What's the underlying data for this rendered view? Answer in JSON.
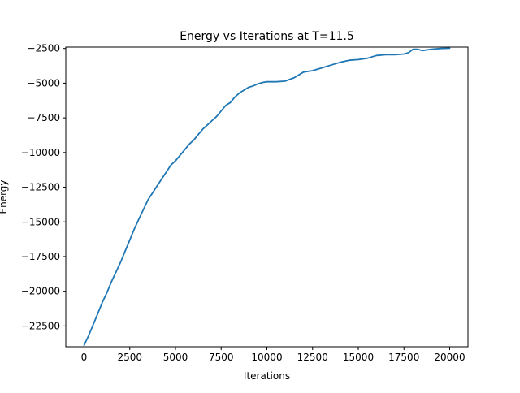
{
  "chart_data": {
    "type": "line",
    "title": "Energy vs Iterations at T=11.5",
    "xlabel": "Iterations",
    "ylabel": "Energy",
    "xlim": [
      -1000,
      21000
    ],
    "ylim": [
      -24000,
      -2400
    ],
    "xticks": [
      0,
      2500,
      5000,
      7500,
      10000,
      12500,
      15000,
      17500,
      20000
    ],
    "yticks": [
      -22500,
      -20000,
      -17500,
      -15000,
      -12500,
      -10000,
      -7500,
      -5000,
      -2500
    ],
    "grid": false,
    "legend": "none",
    "series": [
      {
        "color": "#1f77b4",
        "x": [
          0,
          250,
          500,
          750,
          1000,
          1250,
          1500,
          1750,
          2000,
          2250,
          2500,
          2750,
          3000,
          3250,
          3500,
          3750,
          4000,
          4250,
          4500,
          4750,
          5000,
          5250,
          5500,
          5750,
          6000,
          6250,
          6500,
          6750,
          7000,
          7250,
          7500,
          7750,
          8000,
          8250,
          8500,
          8750,
          9000,
          9250,
          9500,
          9750,
          10000,
          10500,
          11000,
          11500,
          12000,
          12250,
          12500,
          13000,
          13500,
          14000,
          14500,
          15000,
          15500,
          16000,
          16500,
          17000,
          17500,
          17750,
          18000,
          18250,
          18500,
          19000,
          19500,
          20000
        ],
        "y": [
          -23900,
          -23200,
          -22400,
          -21600,
          -20800,
          -20100,
          -19300,
          -18600,
          -17900,
          -17100,
          -16300,
          -15500,
          -14800,
          -14100,
          -13400,
          -12900,
          -12400,
          -11900,
          -11400,
          -10900,
          -10600,
          -10200,
          -9800,
          -9400,
          -9100,
          -8700,
          -8300,
          -8000,
          -7700,
          -7400,
          -7000,
          -6600,
          -6400,
          -6000,
          -5700,
          -5500,
          -5300,
          -5200,
          -5050,
          -4950,
          -4900,
          -4900,
          -4850,
          -4600,
          -4200,
          -4150,
          -4100,
          -3900,
          -3700,
          -3500,
          -3350,
          -3300,
          -3200,
          -3000,
          -2950,
          -2950,
          -2900,
          -2800,
          -2550,
          -2550,
          -2650,
          -2550,
          -2500,
          -2480
        ]
      }
    ]
  }
}
